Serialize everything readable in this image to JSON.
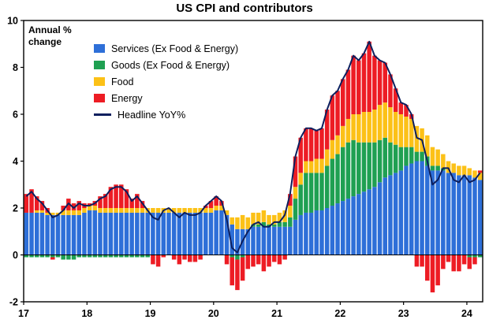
{
  "chart_data": {
    "type": "bar",
    "subtype": "stacked-bar-with-line",
    "title": "US CPI and contributors",
    "x_unit": "month",
    "x_range": [
      "2017-01",
      "2024-03"
    ],
    "legend_position": "upper-left-inside",
    "grid": false,
    "series": [
      {
        "name": "Services (Ex Food & Energy)",
        "color": "#2e6fd8",
        "values": [
          1.8,
          1.8,
          1.8,
          1.8,
          1.7,
          1.7,
          1.7,
          1.7,
          1.7,
          1.7,
          1.7,
          1.8,
          1.9,
          1.9,
          1.8,
          1.8,
          1.8,
          1.8,
          1.8,
          1.8,
          1.8,
          1.8,
          1.8,
          1.8,
          1.8,
          1.8,
          1.8,
          1.8,
          1.8,
          1.8,
          1.8,
          1.8,
          1.8,
          1.8,
          1.8,
          1.8,
          1.9,
          1.9,
          1.7,
          1.3,
          1.1,
          1.1,
          1.1,
          1.2,
          1.2,
          1.2,
          1.2,
          1.2,
          1.2,
          1.2,
          1.2,
          1.5,
          1.7,
          1.8,
          1.8,
          1.9,
          1.9,
          2.0,
          2.1,
          2.2,
          2.3,
          2.4,
          2.5,
          2.6,
          2.7,
          2.8,
          2.9,
          3.1,
          3.3,
          3.4,
          3.5,
          3.6,
          3.8,
          3.9,
          4.0,
          4.0,
          3.8,
          3.6,
          3.6,
          3.6,
          3.5,
          3.5,
          3.4,
          3.4,
          3.4,
          3.3,
          3.2
        ]
      },
      {
        "name": "Goods (Ex Food & Energy)",
        "color": "#1fa052",
        "values": [
          -0.1,
          -0.1,
          -0.1,
          -0.1,
          -0.1,
          -0.1,
          -0.1,
          -0.2,
          -0.2,
          -0.2,
          -0.1,
          -0.1,
          -0.1,
          -0.1,
          -0.1,
          -0.1,
          -0.1,
          -0.1,
          -0.1,
          -0.1,
          -0.1,
          -0.1,
          -0.1,
          -0.1,
          0.0,
          0.0,
          0.0,
          0.0,
          0.0,
          0.0,
          0.0,
          0.0,
          0.0,
          0.0,
          0.0,
          0.0,
          0.0,
          0.0,
          0.0,
          -0.1,
          -0.2,
          -0.1,
          0.0,
          0.1,
          0.1,
          0.2,
          0.1,
          0.1,
          0.2,
          0.2,
          0.4,
          0.9,
          1.3,
          1.7,
          1.7,
          1.6,
          1.6,
          1.8,
          2.0,
          2.1,
          2.3,
          2.4,
          2.4,
          2.2,
          2.1,
          2.0,
          1.9,
          1.8,
          1.7,
          1.4,
          1.2,
          1.0,
          0.8,
          0.7,
          0.4,
          0.4,
          0.4,
          0.2,
          0.2,
          0.1,
          0.0,
          0.0,
          0.0,
          0.0,
          -0.1,
          -0.1,
          -0.1
        ]
      },
      {
        "name": "Food",
        "color": "#fcc117",
        "values": [
          0.0,
          0.0,
          0.1,
          0.1,
          0.1,
          0.1,
          0.1,
          0.2,
          0.2,
          0.2,
          0.2,
          0.2,
          0.2,
          0.2,
          0.2,
          0.2,
          0.2,
          0.2,
          0.2,
          0.2,
          0.2,
          0.2,
          0.2,
          0.2,
          0.2,
          0.2,
          0.2,
          0.2,
          0.2,
          0.2,
          0.2,
          0.2,
          0.2,
          0.2,
          0.2,
          0.2,
          0.2,
          0.2,
          0.2,
          0.3,
          0.5,
          0.6,
          0.5,
          0.5,
          0.5,
          0.5,
          0.4,
          0.4,
          0.4,
          0.5,
          0.5,
          0.5,
          0.5,
          0.5,
          0.5,
          0.6,
          0.6,
          0.7,
          0.8,
          0.8,
          0.9,
          1.0,
          1.1,
          1.2,
          1.3,
          1.3,
          1.4,
          1.5,
          1.5,
          1.5,
          1.4,
          1.4,
          1.3,
          1.2,
          1.1,
          1.0,
          0.9,
          0.8,
          0.7,
          0.6,
          0.5,
          0.4,
          0.4,
          0.4,
          0.3,
          0.3,
          0.3
        ]
      },
      {
        "name": "Energy",
        "color": "#ed1c24",
        "values": [
          0.8,
          1.0,
          0.6,
          0.4,
          0.2,
          -0.1,
          0.0,
          0.2,
          0.5,
          0.3,
          0.4,
          0.2,
          0.1,
          0.2,
          0.5,
          0.6,
          0.9,
          1.0,
          1.0,
          0.8,
          0.4,
          0.6,
          0.3,
          0.0,
          -0.4,
          -0.5,
          -0.1,
          0.0,
          -0.2,
          -0.4,
          -0.2,
          -0.3,
          -0.3,
          -0.2,
          0.1,
          0.3,
          0.4,
          0.2,
          -0.4,
          -1.2,
          -1.3,
          -1.0,
          -0.6,
          -0.5,
          -0.4,
          -0.7,
          -0.5,
          -0.3,
          -0.4,
          -0.2,
          0.5,
          1.3,
          1.5,
          1.4,
          1.4,
          1.2,
          1.3,
          1.7,
          1.9,
          1.9,
          2.0,
          2.1,
          2.5,
          2.3,
          2.5,
          3.0,
          2.3,
          1.9,
          1.7,
          1.4,
          1.0,
          0.5,
          0.5,
          0.2,
          -0.5,
          -0.5,
          -1.1,
          -1.6,
          -1.3,
          -0.6,
          -0.3,
          -0.7,
          -0.7,
          -0.4,
          -0.5,
          -0.3,
          0.1
        ]
      }
    ],
    "line": {
      "name": "Headline YoY%",
      "color": "#0d1f5e",
      "values": [
        2.5,
        2.7,
        2.4,
        2.2,
        1.9,
        1.6,
        1.7,
        1.9,
        2.2,
        2.0,
        2.2,
        2.1,
        2.1,
        2.2,
        2.4,
        2.5,
        2.8,
        2.9,
        2.9,
        2.7,
        2.3,
        2.5,
        2.2,
        1.9,
        1.6,
        1.5,
        1.9,
        2.0,
        1.8,
        1.6,
        1.8,
        1.7,
        1.7,
        1.8,
        2.1,
        2.3,
        2.5,
        2.3,
        1.5,
        0.3,
        0.1,
        0.6,
        1.0,
        1.3,
        1.4,
        1.2,
        1.2,
        1.4,
        1.4,
        1.7,
        2.6,
        4.2,
        5.0,
        5.4,
        5.4,
        5.3,
        5.4,
        6.2,
        6.8,
        7.0,
        7.5,
        7.9,
        8.5,
        8.3,
        8.6,
        9.1,
        8.5,
        8.3,
        8.2,
        7.7,
        7.1,
        6.5,
        6.4,
        6.0,
        5.0,
        4.9,
        4.0,
        3.0,
        3.2,
        3.7,
        3.7,
        3.2,
        3.1,
        3.4,
        3.1,
        3.2,
        3.5
      ]
    }
  },
  "axis": {
    "y_label_line1": "Annual %",
    "y_label_line2": "change",
    "ylim": [
      -2,
      10
    ],
    "y_ticks": [
      10,
      8,
      6,
      4,
      2,
      0,
      -2
    ],
    "x_ticks": [
      "17",
      "18",
      "19",
      "20",
      "21",
      "22",
      "23",
      "24"
    ],
    "x_tick_month_index": [
      0,
      12,
      24,
      36,
      48,
      60,
      72,
      84
    ]
  },
  "colors": {
    "axis": "#000000",
    "background": "#ffffff"
  }
}
